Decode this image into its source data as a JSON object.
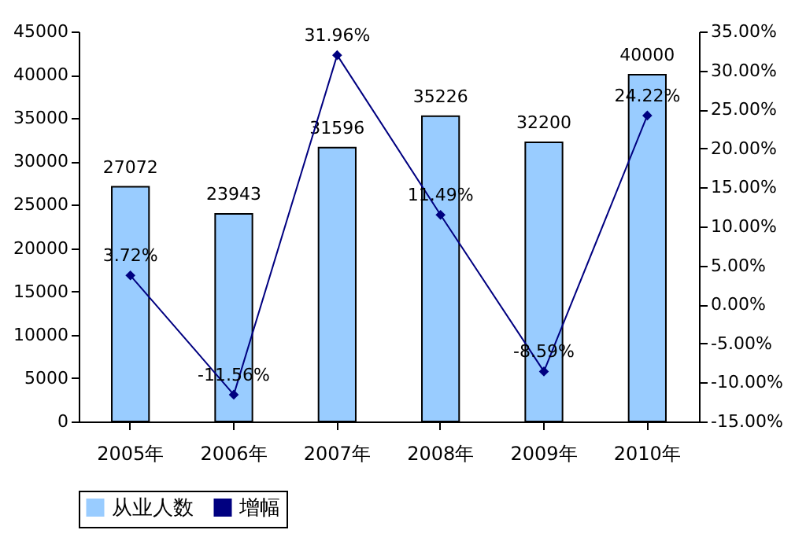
{
  "chart_data": {
    "type": "bar",
    "categories": [
      "2005年",
      "2006年",
      "2007年",
      "2008年",
      "2009年",
      "2010年"
    ],
    "series": [
      {
        "name": "从业人数",
        "color": "#99ccff",
        "values": [
          27072,
          23943,
          31596,
          35226,
          32200,
          40000
        ],
        "value_labels": [
          "27072",
          "23943",
          "31596",
          "35226",
          "32200",
          "40000"
        ]
      },
      {
        "name": "增幅",
        "type": "line",
        "axis": "y2",
        "color": "#000080",
        "values": [
          3.72,
          -11.56,
          31.96,
          11.49,
          -8.59,
          24.22
        ],
        "value_labels": [
          "3.72%",
          "-11.56%",
          "31.96%",
          "11.49%",
          "-8.59%",
          "24.22%"
        ]
      }
    ],
    "ylim": [
      0,
      45000
    ],
    "yticks": [
      0,
      5000,
      10000,
      15000,
      20000,
      25000,
      30000,
      35000,
      40000,
      45000
    ],
    "y2lim": [
      -15,
      35
    ],
    "y2ticks": [
      {
        "value": -15,
        "label": "-15.00%"
      },
      {
        "value": -10,
        "label": "-10.00%"
      },
      {
        "value": -5,
        "label": "-5.00%"
      },
      {
        "value": 0,
        "label": "0.00%"
      },
      {
        "value": 5,
        "label": "5.00%"
      },
      {
        "value": 10,
        "label": "10.00%"
      },
      {
        "value": 15,
        "label": "15.00%"
      },
      {
        "value": 20,
        "label": "20.00%"
      },
      {
        "value": 25,
        "label": "25.00%"
      },
      {
        "value": 30,
        "label": "30.00%"
      },
      {
        "value": 35,
        "label": "35.00%"
      }
    ],
    "legend": "bottom",
    "marker": "diamond",
    "line_style": "solid"
  }
}
